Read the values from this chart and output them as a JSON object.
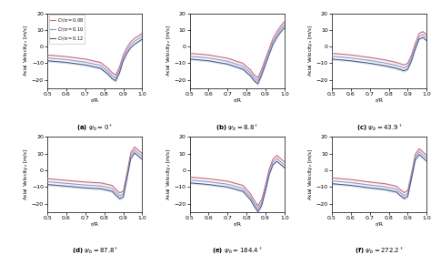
{
  "r_pts": [
    0.5,
    0.52,
    0.54,
    0.56,
    0.58,
    0.6,
    0.62,
    0.64,
    0.66,
    0.68,
    0.7,
    0.72,
    0.74,
    0.76,
    0.78,
    0.8,
    0.82,
    0.84,
    0.86,
    0.88,
    0.9,
    0.92,
    0.94,
    0.96,
    0.98,
    1.0
  ],
  "colors": [
    "#cc6677",
    "#8899cc",
    "#445588"
  ],
  "fill_alpha": 0.2,
  "legend_labels": [
    "$C_T/\\sigma = 0.08$",
    "$C_T/\\sigma = 0.10$",
    "$C_T/\\sigma = 0.12$"
  ],
  "subtitles": [
    "(a) $\\psi_b = 0^\\circ$",
    "(b) $\\psi_b = 8.8^\\circ$",
    "(c) $\\psi_b = 43.9^\\circ$",
    "(d) $\\psi_b = 87.8^\\circ$",
    "(e) $\\psi_b = 184.4^\\circ$",
    "(f) $\\psi_b = 272.2^\\circ$"
  ],
  "ylabel": "Axial Velocity$_z$ [m/s]",
  "xlabel": "r/R",
  "ylim": [
    -25,
    20
  ],
  "yticks": [
    -20,
    -10,
    0,
    10,
    20
  ],
  "xlim": [
    0.5,
    1.0
  ],
  "xticks": [
    0.5,
    0.6,
    0.7,
    0.8,
    0.9,
    1.0
  ],
  "panels": {
    "a": {
      "knots_r": [
        0.5,
        0.6,
        0.7,
        0.78,
        0.83,
        0.855,
        0.875,
        0.9,
        0.93,
        0.96,
        1.0
      ],
      "knots_v0": [
        -5.0,
        -6.0,
        -7.5,
        -9.5,
        -14.0,
        -18.0,
        -14.0,
        -5.0,
        2.0,
        5.0,
        8.0
      ],
      "offsets": [
        0.0,
        -1.8,
        -3.5
      ],
      "std_scale": 0.03,
      "std_base": 0.4
    },
    "b": {
      "knots_r": [
        0.5,
        0.6,
        0.7,
        0.78,
        0.83,
        0.855,
        0.875,
        0.91,
        0.94,
        0.97,
        1.0
      ],
      "knots_v0": [
        -4.0,
        -5.0,
        -7.0,
        -10.0,
        -15.0,
        -20.0,
        -15.0,
        -4.0,
        5.0,
        11.0,
        15.0
      ],
      "offsets": [
        0.0,
        -1.8,
        -3.5
      ],
      "std_scale": 0.03,
      "std_base": 0.4
    },
    "c": {
      "knots_r": [
        0.5,
        0.6,
        0.7,
        0.78,
        0.84,
        0.88,
        0.9,
        0.92,
        0.94,
        0.96,
        0.98,
        1.0
      ],
      "knots_v0": [
        -4.0,
        -5.0,
        -6.5,
        -8.0,
        -9.5,
        -11.0,
        -10.0,
        -5.0,
        2.0,
        8.0,
        9.0,
        7.0
      ],
      "offsets": [
        0.0,
        -1.8,
        -3.5
      ],
      "std_scale": 0.03,
      "std_base": 0.4
    },
    "d": {
      "knots_r": [
        0.5,
        0.6,
        0.7,
        0.78,
        0.84,
        0.875,
        0.895,
        0.915,
        0.935,
        0.96,
        1.0
      ],
      "knots_v0": [
        -5.0,
        -6.0,
        -7.0,
        -7.5,
        -9.0,
        -13.0,
        -15.0,
        -5.0,
        10.0,
        14.0,
        10.0
      ],
      "offsets": [
        0.0,
        -1.8,
        -3.5
      ],
      "std_scale": 0.03,
      "std_base": 0.4
    },
    "e": {
      "knots_r": [
        0.5,
        0.6,
        0.7,
        0.78,
        0.82,
        0.845,
        0.865,
        0.885,
        0.91,
        0.93,
        0.96,
        1.0
      ],
      "knots_v0": [
        -4.0,
        -5.0,
        -6.5,
        -9.0,
        -14.0,
        -19.0,
        -22.0,
        -16.0,
        -4.0,
        6.0,
        9.0,
        5.0
      ],
      "offsets": [
        0.0,
        -1.8,
        -3.5
      ],
      "std_scale": 0.03,
      "std_base": 0.4
    },
    "f": {
      "knots_r": [
        0.5,
        0.6,
        0.7,
        0.78,
        0.84,
        0.875,
        0.895,
        0.915,
        0.935,
        0.96,
        1.0
      ],
      "knots_v0": [
        -4.5,
        -5.5,
        -7.0,
        -8.0,
        -9.5,
        -13.0,
        -14.5,
        -5.0,
        9.0,
        13.0,
        9.0
      ],
      "offsets": [
        0.0,
        -1.8,
        -3.5
      ],
      "std_scale": 0.03,
      "std_base": 0.4
    }
  }
}
